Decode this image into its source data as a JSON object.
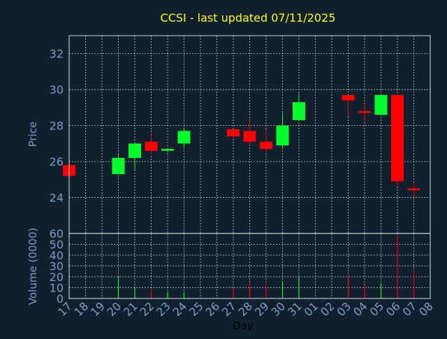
{
  "chart_data": {
    "type": "candlestick",
    "title": "CCSI - last updated 07/11/2025",
    "xlabel": "Day",
    "price_ylabel": "Price",
    "volume_ylabel": "Volume (0000)",
    "x_tick_labels": [
      "17",
      "18",
      "19",
      "20",
      "21",
      "22",
      "23",
      "24",
      "25",
      "26",
      "27",
      "28",
      "29",
      "30",
      "31",
      "01",
      "02",
      "03",
      "04",
      "05",
      "06",
      "07",
      "08"
    ],
    "price_ylim": [
      22,
      33
    ],
    "price_y_ticks": [
      24,
      26,
      28,
      30,
      32
    ],
    "volume_ylim": [
      0,
      60
    ],
    "volume_y_ticks": [
      0,
      10,
      20,
      30,
      40,
      50,
      60
    ],
    "grid": true,
    "colors": {
      "background": "#10202f",
      "up": "#00ff2a",
      "down": "#ff0000",
      "title": "#ffff00",
      "axis_text": "#7f9bc4",
      "grid": "#ffffff",
      "frame": "#ffffff"
    },
    "candles": [
      {
        "x": "17",
        "open": 25.8,
        "high": 25.8,
        "low": 25.2,
        "close": 25.2,
        "volume": 0
      },
      {
        "x": "20",
        "open": 25.3,
        "high": 26.4,
        "low": 25.3,
        "close": 26.2,
        "volume": 20
      },
      {
        "x": "21",
        "open": 26.2,
        "high": 27.0,
        "low": 25.5,
        "close": 27.0,
        "volume": 11
      },
      {
        "x": "22",
        "open": 27.1,
        "high": 27.5,
        "low": 26.4,
        "close": 26.6,
        "volume": 9
      },
      {
        "x": "23",
        "open": 26.6,
        "high": 26.7,
        "low": 26.5,
        "close": 26.7,
        "volume": 6
      },
      {
        "x": "24",
        "open": 27.0,
        "high": 27.9,
        "low": 26.8,
        "close": 27.7,
        "volume": 6
      },
      {
        "x": "27",
        "open": 27.8,
        "high": 27.8,
        "low": 27.3,
        "close": 27.4,
        "volume": 10
      },
      {
        "x": "28",
        "open": 27.7,
        "high": 28.3,
        "low": 26.9,
        "close": 27.1,
        "volume": 15
      },
      {
        "x": "29",
        "open": 27.1,
        "high": 27.8,
        "low": 26.5,
        "close": 26.7,
        "volume": 14
      },
      {
        "x": "30",
        "open": 26.9,
        "high": 28.7,
        "low": 26.7,
        "close": 28.0,
        "volume": 16
      },
      {
        "x": "31",
        "open": 28.3,
        "high": 29.8,
        "low": 28.3,
        "close": 29.3,
        "volume": 21
      },
      {
        "x": "03",
        "open": 29.7,
        "high": 29.7,
        "low": 28.5,
        "close": 29.4,
        "volume": 21
      },
      {
        "x": "04",
        "open": 28.8,
        "high": 29.2,
        "low": 28.2,
        "close": 28.7,
        "volume": 12
      },
      {
        "x": "05",
        "open": 28.6,
        "high": 29.7,
        "low": 28.6,
        "close": 29.7,
        "volume": 14
      },
      {
        "x": "06",
        "open": 29.7,
        "high": 29.7,
        "low": 24.6,
        "close": 24.9,
        "volume": 58
      },
      {
        "x": "07",
        "open": 24.5,
        "high": 24.8,
        "low": 24.0,
        "close": 24.4,
        "volume": 26
      }
    ]
  }
}
